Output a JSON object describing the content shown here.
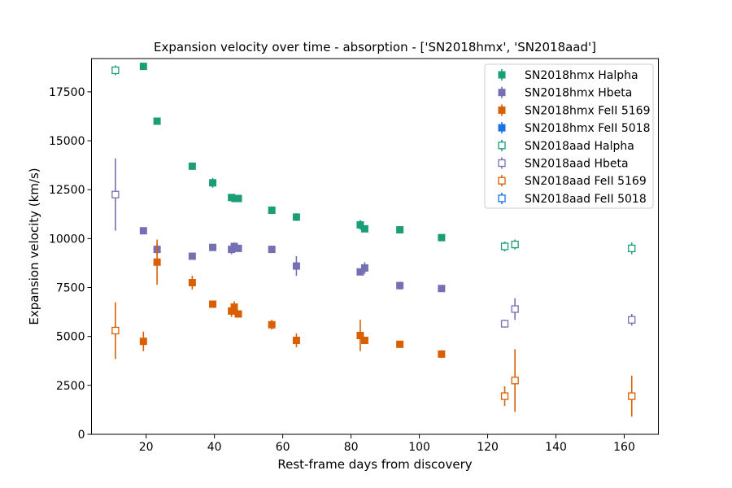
{
  "chart_data": {
    "type": "scatter",
    "title": "Expansion velocity over time - absorption - ['SN2018hmx', 'SN2018aad']",
    "xlabel": "Rest-frame days from discovery",
    "ylabel": "Expansion velocity (km/s)",
    "xlim": [
      4,
      170
    ],
    "ylim": [
      0,
      19200
    ],
    "xticks": [
      20,
      40,
      60,
      80,
      100,
      120,
      140,
      160
    ],
    "yticks": [
      0,
      2500,
      5000,
      7500,
      10000,
      12500,
      15000,
      17500
    ],
    "grid": false,
    "legend_position": "top-right",
    "series": [
      {
        "name": "SN2018hmx Halpha",
        "color": "#1b9e77",
        "marker": "filled-square",
        "points": [
          [
            19.2,
            18800,
            0
          ],
          [
            23.2,
            16000,
            0
          ],
          [
            33.5,
            13700,
            0
          ],
          [
            39.5,
            12850,
            250
          ],
          [
            45.0,
            12100,
            0
          ],
          [
            46.0,
            12050,
            0
          ],
          [
            47.0,
            12050,
            0
          ],
          [
            56.8,
            11450,
            200
          ],
          [
            64.0,
            11100,
            200
          ],
          [
            82.7,
            10700,
            250
          ],
          [
            84.0,
            10500,
            0
          ],
          [
            94.3,
            10450,
            0
          ],
          [
            106.5,
            10050,
            0
          ]
        ]
      },
      {
        "name": "SN2018hmx Hbeta",
        "color": "#7570b3",
        "marker": "filled-square",
        "points": [
          [
            19.2,
            10400,
            0
          ],
          [
            23.2,
            9450,
            300
          ],
          [
            33.5,
            9100,
            0
          ],
          [
            39.5,
            9550,
            0
          ],
          [
            45.0,
            9450,
            250
          ],
          [
            45.8,
            9600,
            200
          ],
          [
            47.0,
            9500,
            0
          ],
          [
            56.8,
            9450,
            0
          ],
          [
            64.0,
            8600,
            500
          ],
          [
            82.7,
            8300,
            0
          ],
          [
            84.0,
            8500,
            300
          ],
          [
            94.3,
            7600,
            200
          ],
          [
            106.5,
            7450,
            0
          ]
        ]
      },
      {
        "name": "SN2018hmx FeII 5169",
        "color": "#d95f02",
        "marker": "filled-square",
        "points": [
          [
            19.2,
            4750,
            500
          ],
          [
            23.2,
            8800,
            1150
          ],
          [
            33.5,
            7750,
            350
          ],
          [
            39.5,
            6650,
            0
          ],
          [
            45.0,
            6300,
            300
          ],
          [
            45.8,
            6500,
            300
          ],
          [
            47.0,
            6150,
            0
          ],
          [
            56.8,
            5600,
            250
          ],
          [
            64.0,
            4800,
            350
          ],
          [
            82.7,
            5050,
            800
          ],
          [
            84.0,
            4800,
            0
          ],
          [
            94.3,
            4600,
            0
          ],
          [
            106.5,
            4100,
            200
          ]
        ]
      },
      {
        "name": "SN2018hmx FeII 5018",
        "color": "#1a73e8",
        "marker": "filled-square",
        "points": []
      },
      {
        "name": "SN2018aad Halpha",
        "color": "#1b9e77",
        "marker": "open-square",
        "points": [
          [
            11.0,
            18600,
            250
          ],
          [
            125.0,
            9600,
            250
          ],
          [
            128.0,
            9700,
            250
          ],
          [
            162.2,
            9500,
            300
          ]
        ]
      },
      {
        "name": "SN2018aad Hbeta",
        "color": "#7570b3",
        "marker": "open-square",
        "points": [
          [
            11.0,
            12250,
            1850
          ],
          [
            125.0,
            5650,
            200
          ],
          [
            128.0,
            6400,
            550
          ],
          [
            162.2,
            5850,
            300
          ]
        ]
      },
      {
        "name": "SN2018aad FeII 5169",
        "color": "#d95f02",
        "marker": "open-square",
        "points": [
          [
            11.0,
            5300,
            1450
          ],
          [
            125.0,
            1950,
            500
          ],
          [
            128.0,
            2750,
            1600
          ],
          [
            162.2,
            1950,
            1050
          ]
        ]
      },
      {
        "name": "SN2018aad FeII 5018",
        "color": "#1a73e8",
        "marker": "open-square",
        "points": []
      }
    ]
  },
  "legend_labels": [
    "SN2018hmx Halpha",
    "SN2018hmx Hbeta",
    "SN2018hmx FeII 5169",
    "SN2018hmx FeII 5018",
    "SN2018aad Halpha",
    "SN2018aad Hbeta",
    "SN2018aad FeII 5169",
    "SN2018aad FeII 5018"
  ]
}
